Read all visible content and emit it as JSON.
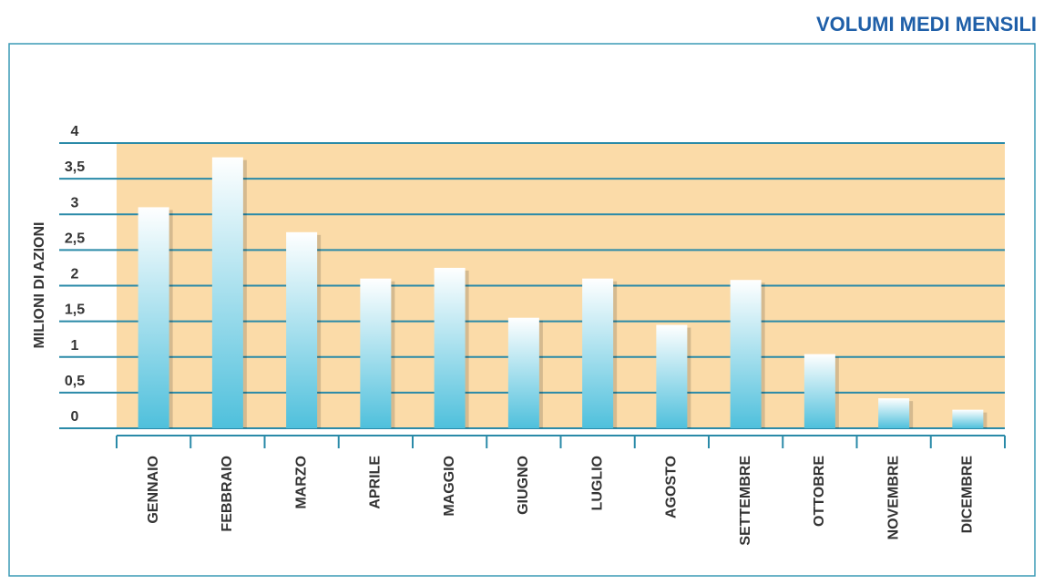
{
  "chart_data": {
    "type": "bar",
    "title": "VOLUMI MEDI MENSILI",
    "y_label": "MILIONI DI AZIONI",
    "categories": [
      "GENNAIO",
      "FEBBRAIO",
      "MARZO",
      "APRILE",
      "MAGGIO",
      "GIUGNO",
      "LUGLIO",
      "AGOSTO",
      "SETTEMBRE",
      "OTTOBRE",
      "NOVEMBRE",
      "DICEMBRE"
    ],
    "values": [
      3.1,
      3.8,
      2.75,
      2.1,
      2.25,
      1.55,
      2.1,
      1.45,
      2.08,
      1.04,
      0.42,
      0.26
    ],
    "color": "#4fc0dc",
    "ylim": [
      0,
      4
    ],
    "yticks": [
      0,
      {
        "value": 0.5,
        "label": "0,5"
      },
      1,
      {
        "value": 1.5,
        "label": "1,5"
      },
      2,
      {
        "value": 2.5,
        "label": "2,5"
      },
      3,
      {
        "value": 3.5,
        "label": "3,5"
      },
      4
    ],
    "grid": true
  }
}
